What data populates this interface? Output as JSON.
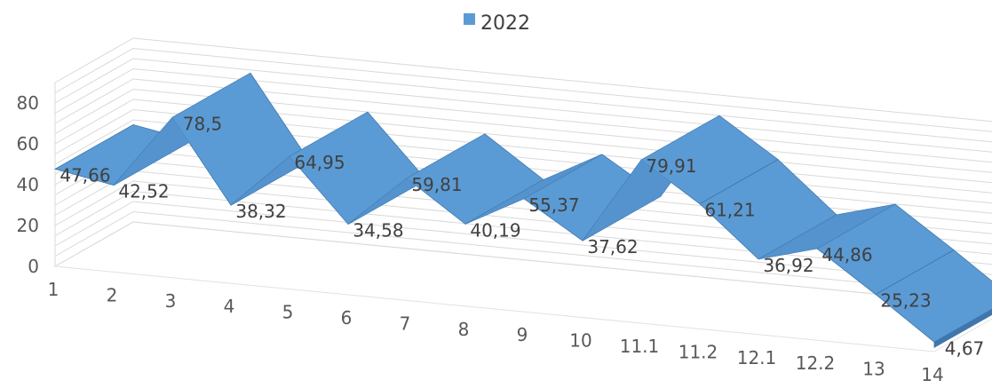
{
  "chart_data": {
    "type": "area",
    "view": "3d",
    "categories": [
      "1",
      "2",
      "3",
      "4",
      "5",
      "6",
      "7",
      "8",
      "9",
      "10",
      "11.1",
      "11.2",
      "12.1",
      "12.2",
      "13",
      "14"
    ],
    "series": [
      {
        "name": "2022",
        "values": [
          47.66,
          42.52,
          78.5,
          38.32,
          64.95,
          34.58,
          59.81,
          40.19,
          55.37,
          37.62,
          79.91,
          61.21,
          36.92,
          44.86,
          25.23,
          4.67
        ],
        "labels": [
          "47,66",
          "42,52",
          "78,5",
          "38,32",
          "64,95",
          "34,58",
          "59,81",
          "40,19",
          "55,37",
          "37,62",
          "79,91",
          "61,21",
          "36,92",
          "44,86",
          "25,23",
          "4,67"
        ],
        "color": "#5b9bd5"
      }
    ],
    "y_ticks": [
      "0",
      "20",
      "40",
      "60",
      "80"
    ],
    "ylim": [
      0,
      90
    ],
    "grid": true,
    "legend_position": "top",
    "data_labels": true
  }
}
